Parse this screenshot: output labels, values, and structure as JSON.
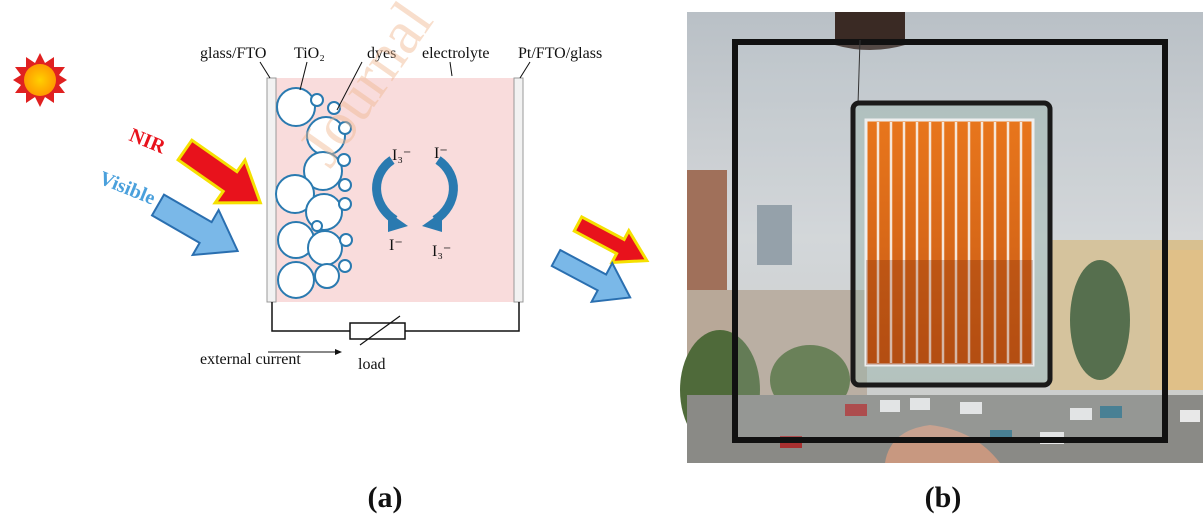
{
  "labels": {
    "glass_fto": "glass/FTO",
    "tio2": "TiO₂",
    "dyes": "dyes",
    "electrolyte": "electrolyte",
    "pt_fto_glass": "Pt/FTO/glass",
    "nir": "NIR",
    "visible": "Visible",
    "ion_top_left": "I₃⁻",
    "ion_top_right": "I⁻",
    "ion_bottom_left": "I⁻",
    "ion_bottom_right": "I₃⁻",
    "external_current": "external current",
    "load": "load",
    "watermark": "Journal"
  },
  "panels": {
    "a": "(a)",
    "b": "(b)"
  }
}
